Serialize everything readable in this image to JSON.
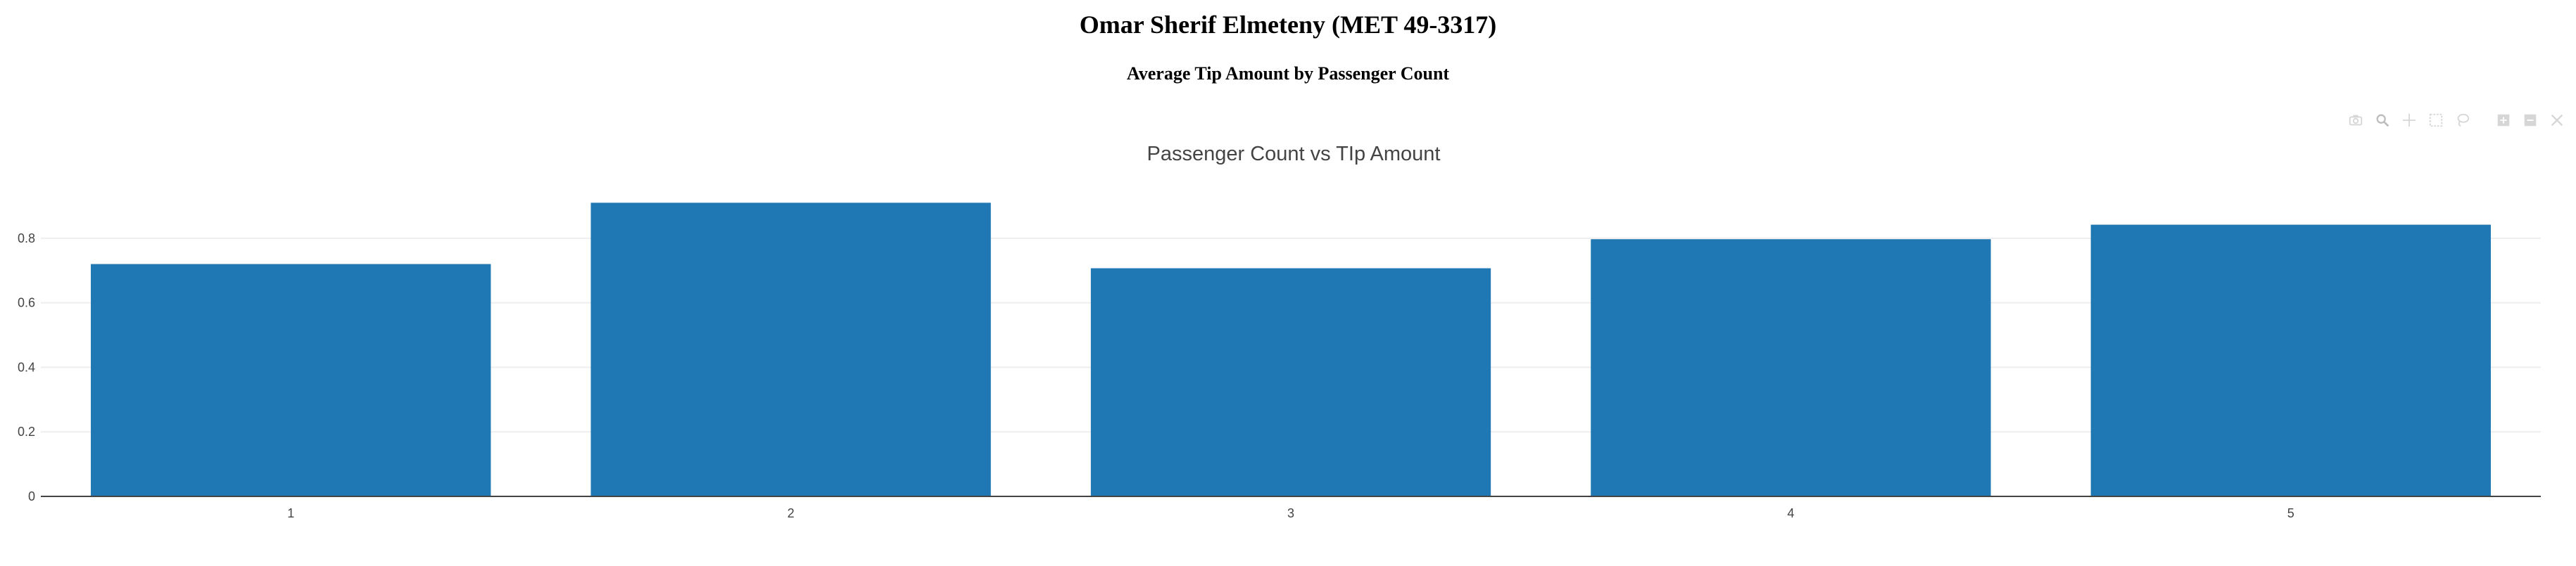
{
  "page": {
    "title": "Omar Sherif Elmeteny (MET 49-3317)",
    "subtitle": "Average Tip Amount by Passenger Count"
  },
  "modebar": {
    "icons": [
      "camera-icon",
      "zoom-icon",
      "pan-icon",
      "box-select-icon",
      "lasso-select-icon",
      "zoom-in-icon",
      "zoom-out-icon",
      "autoscale-icon",
      "reset-axes-icon"
    ]
  },
  "colors": {
    "bar": "#1f77b4",
    "grid": "#eeeeee",
    "axis": "#444444",
    "text": "#444444",
    "modebar_icon": "#d6d6d6"
  },
  "chart_data": {
    "type": "bar",
    "title": "Passenger Count vs TIp Amount",
    "categories": [
      "1",
      "2",
      "3",
      "4",
      "5"
    ],
    "values": [
      0.72,
      0.91,
      0.707,
      0.797,
      0.842
    ],
    "ylim": [
      0,
      0.95
    ],
    "yticks": [
      0,
      0.2,
      0.4,
      0.6,
      0.8
    ],
    "ytick_labels": [
      "0",
      "0.2",
      "0.4",
      "0.6",
      "0.8"
    ],
    "xlabel": "",
    "ylabel": "",
    "grid": true,
    "legend": "none"
  }
}
